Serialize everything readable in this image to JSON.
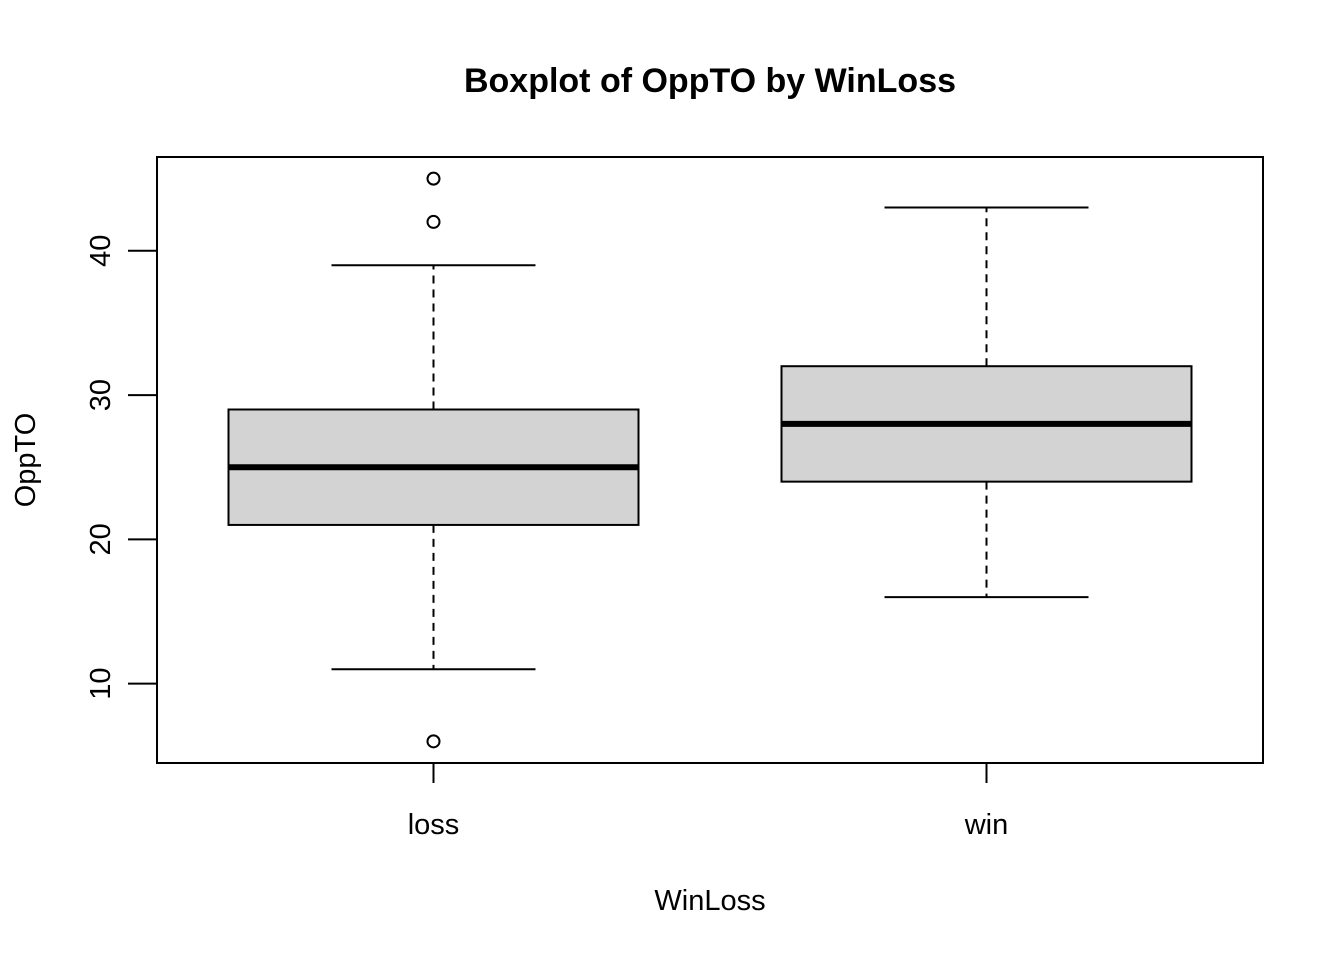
{
  "chart_data": {
    "type": "boxplot",
    "title": "Boxplot of OppTO by WinLoss",
    "xlabel": "WinLoss",
    "ylabel": "OppTO",
    "categories": [
      "loss",
      "win"
    ],
    "ylim": [
      4.5,
      46.5
    ],
    "yticks": [
      10,
      20,
      30,
      40
    ],
    "grid": false,
    "box_fill": "#d3d3d3",
    "boxes": [
      {
        "category": "loss",
        "whisker_low": 11,
        "q1": 21,
        "median": 25,
        "q3": 29,
        "whisker_high": 39,
        "outliers": [
          6,
          42,
          45
        ]
      },
      {
        "category": "win",
        "whisker_low": 16,
        "q1": 24,
        "median": 28,
        "q3": 32,
        "whisker_high": 43,
        "outliers": []
      }
    ]
  }
}
